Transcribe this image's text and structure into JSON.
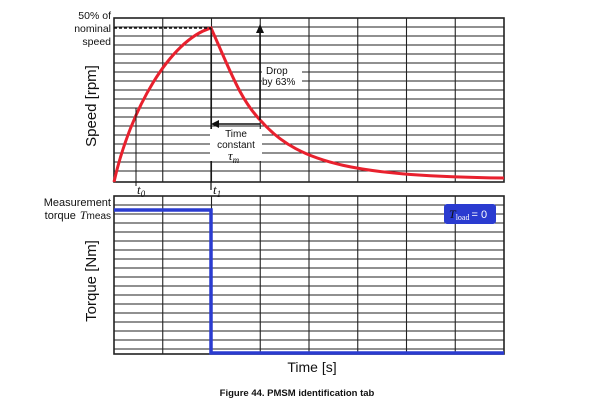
{
  "speed_ref_label": [
    "50% of",
    "nominal",
    "speed"
  ],
  "speed_axis_label": "Speed [rpm]",
  "torque_axis_label": "Torque [Nm]",
  "time_axis_label": "Time [s]",
  "t0_base": "t",
  "t0_sub": "0",
  "t1_base": "t",
  "t1_sub": "1",
  "drop_label": [
    "Drop",
    "by 63%"
  ],
  "time_constant_label": [
    "Time",
    "constant"
  ],
  "tau_base": "τ",
  "tau_sub": "m",
  "measurement_label": "Measurement",
  "torque_meas_prefix": "torque",
  "tmeas_base": "T",
  "tmeas_sub": "meas",
  "tload_base": "T",
  "tload_sub": "load",
  "tload_value": "= 0",
  "caption": "Figure 44.  PMSM identification tab",
  "colors": {
    "speed_curve": "#e8212e",
    "torque_line": "#2a3bd0",
    "grid": "#222222"
  }
}
